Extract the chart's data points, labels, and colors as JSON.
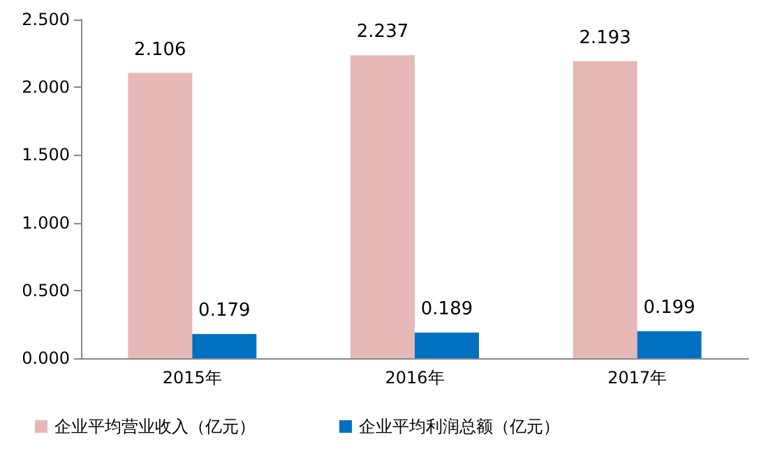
{
  "chart_data": {
    "type": "bar",
    "categories": [
      "2015年",
      "2016年",
      "2017年"
    ],
    "series": [
      {
        "name": "企业平均营业收入（亿元）",
        "color": "#e6b9b8",
        "values": [
          2.106,
          2.237,
          2.193
        ]
      },
      {
        "name": "企业平均利润总额（亿元）",
        "color": "#0070c0",
        "values": [
          0.179,
          0.189,
          0.199
        ]
      }
    ],
    "ylim": [
      0,
      2.5
    ],
    "yticks": [
      {
        "value": 0,
        "label": "0.000"
      },
      {
        "value": 0.5,
        "label": "0.500"
      },
      {
        "value": 1,
        "label": "1.000"
      },
      {
        "value": 1.5,
        "label": "1.500"
      },
      {
        "value": 2,
        "label": "2.000"
      },
      {
        "value": 2.5,
        "label": "2.500"
      }
    ],
    "data_labels": true,
    "grid": false,
    "legend": "bottom"
  }
}
